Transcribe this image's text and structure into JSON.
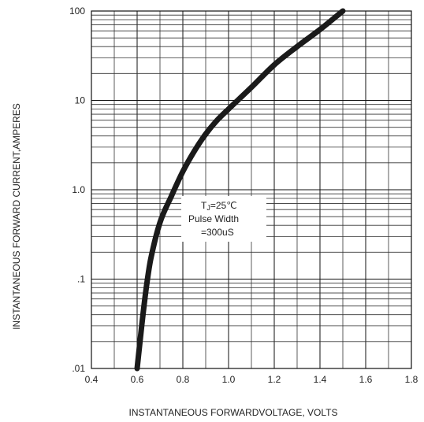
{
  "chart_data": {
    "type": "line",
    "title": "",
    "xlabel": "INSTANTANEOUS FORWARDVOLTAGE,  VOLTS",
    "ylabel": "INSTANTANEOUS FORWARD CURRENT,AMPERES",
    "xlim": [
      0.4,
      1.8
    ],
    "ylim": [
      0.01,
      100
    ],
    "y_scale": "log",
    "grid": true,
    "x_ticks": [
      "0.4",
      "0.6",
      "0.8",
      "1.0",
      "1.2",
      "1.4",
      "1.6",
      "1.8"
    ],
    "y_ticks": [
      {
        "value": 0.01,
        "label": ".01"
      },
      {
        "value": 0.1,
        "label": ".1"
      },
      {
        "value": 1,
        "label": "1.0"
      },
      {
        "value": 10,
        "label": "10"
      },
      {
        "value": 100,
        "label": "100"
      }
    ],
    "series": [
      {
        "x": [
          0.6,
          0.62,
          0.64,
          0.66,
          0.7,
          0.75,
          0.8,
          0.85,
          0.9,
          0.95,
          1.0,
          1.1,
          1.2,
          1.3,
          1.4,
          1.5
        ],
        "y": [
          0.01,
          0.03,
          0.08,
          0.17,
          0.43,
          0.85,
          1.6,
          2.7,
          4.2,
          6.0,
          8.0,
          14,
          25,
          40,
          62,
          100
        ],
        "color": "#1a1a1a"
      }
    ],
    "annotation": {
      "line1_main": "T",
      "line1_sub": "J",
      "line1_rest": "=25℃",
      "line2": "Pulse Width",
      "line3": "=300uS"
    }
  }
}
